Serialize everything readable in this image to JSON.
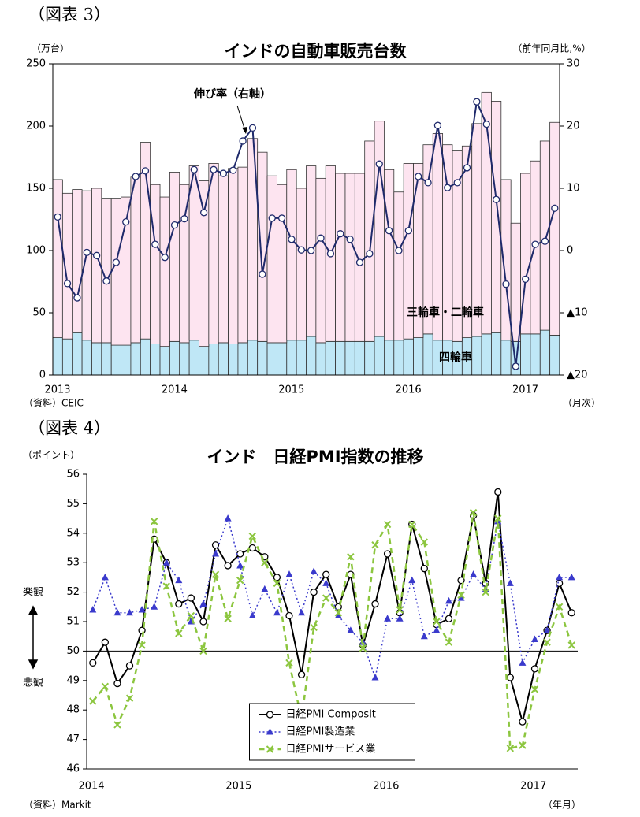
{
  "chart_data": [
    {
      "type": "bar",
      "stacked": true,
      "figure_label": "（図表 3）",
      "title": "インドの自動車販売台数",
      "y_unit": "（万台）",
      "y2_unit": "（前年同月比,%）",
      "source": "（資料）CEIC",
      "x_unit": "（月次）",
      "categories": [
        "2013",
        null,
        null,
        null,
        null,
        null,
        null,
        null,
        null,
        null,
        null,
        null,
        "2014",
        null,
        null,
        null,
        null,
        null,
        null,
        null,
        null,
        null,
        null,
        null,
        "2015",
        null,
        null,
        null,
        null,
        null,
        null,
        null,
        null,
        null,
        null,
        null,
        "2016",
        null,
        null,
        null,
        null,
        null,
        null,
        null,
        null,
        null,
        null,
        null,
        "2017",
        null,
        null,
        null
      ],
      "ylim": [
        0,
        250
      ],
      "yticks": [
        0,
        50,
        100,
        150,
        200,
        250
      ],
      "y2lim": [
        -20,
        30
      ],
      "y2ticks": [
        {
          "value": -20,
          "label": "▲20"
        },
        {
          "value": -10,
          "label": "▲10"
        },
        0,
        10,
        20,
        30
      ],
      "series": [
        {
          "name": "四輪車",
          "type": "bar",
          "color": "#bfe7f6",
          "values": [
            30,
            29,
            34,
            28,
            26,
            26,
            24,
            24,
            26,
            29,
            25,
            23,
            27,
            26,
            28,
            23,
            25,
            26,
            25,
            26,
            28,
            27,
            26,
            26,
            28,
            28,
            31,
            26,
            27,
            27,
            27,
            27,
            27,
            31,
            28,
            28,
            29,
            30,
            33,
            28,
            28,
            27,
            30,
            31,
            33,
            34,
            28,
            27,
            33,
            33,
            36,
            32
          ]
        },
        {
          "name": "三輪車・二輪車",
          "type": "bar",
          "color": "#fde4f0",
          "values": [
            127,
            117,
            115,
            120,
            124,
            116,
            118,
            119,
            133,
            158,
            128,
            120,
            136,
            127,
            140,
            133,
            145,
            134,
            141,
            141,
            162,
            152,
            134,
            127,
            137,
            122,
            137,
            132,
            141,
            135,
            135,
            135,
            161,
            173,
            137,
            119,
            141,
            140,
            152,
            166,
            157,
            153,
            154,
            171,
            194,
            186,
            129,
            95,
            129,
            139,
            152,
            171
          ]
        },
        {
          "name": "伸び率（右軸）",
          "type": "line",
          "axis": "y2",
          "color": "#1f2a6b",
          "marker": "circle",
          "dash": "solid",
          "values": [
            5.4,
            -5.3,
            -7.6,
            -0.3,
            -0.8,
            -4.9,
            -1.9,
            4.6,
            11.9,
            12.8,
            1.0,
            -1.1,
            4.1,
            5.1,
            13.0,
            6.1,
            13.0,
            12.4,
            12.9,
            17.6,
            19.7,
            -3.8,
            5.2,
            5.2,
            1.8,
            0.1,
            0,
            2.0,
            -0.5,
            2.7,
            1.8,
            -1.9,
            -0.5,
            13.9,
            3.2,
            0,
            3.2,
            11.9,
            10.9,
            20.1,
            10.1,
            10.9,
            13.3,
            23.9,
            20.3,
            8.2,
            -5.4,
            -18.6,
            -4.6,
            1.0,
            1.5,
            6.8
          ]
        }
      ]
    },
    {
      "type": "line",
      "figure_label": "（図表 4）",
      "title": "インド　日経PMI指数の推移",
      "y_unit": "（ポイント）",
      "source": "（資料）Markit",
      "x_unit": "（年月）",
      "annotations": [
        "楽観",
        "悲観"
      ],
      "categories": [
        "2014",
        null,
        null,
        null,
        null,
        null,
        null,
        null,
        null,
        null,
        null,
        null,
        "2015",
        null,
        null,
        null,
        null,
        null,
        null,
        null,
        null,
        null,
        null,
        null,
        "2016",
        null,
        null,
        null,
        null,
        null,
        null,
        null,
        null,
        null,
        null,
        null,
        "2017",
        null,
        null,
        null
      ],
      "ylim": [
        46,
        56
      ],
      "yticks": [
        46,
        47,
        48,
        49,
        50,
        51,
        52,
        53,
        54,
        55,
        56
      ],
      "reference_line": 50,
      "legend": "lower center",
      "series": [
        {
          "name": "日経PMI Composit",
          "type": "line",
          "color": "#000000",
          "marker": "circle",
          "dash": "solid",
          "values": [
            49.6,
            50.3,
            48.9,
            49.5,
            50.7,
            53.8,
            53.0,
            51.6,
            51.8,
            51.0,
            53.6,
            52.9,
            53.3,
            53.5,
            53.2,
            52.5,
            51.2,
            49.2,
            52.0,
            52.6,
            51.5,
            52.6,
            50.2,
            51.6,
            53.3,
            51.3,
            54.3,
            52.8,
            50.9,
            51.1,
            52.4,
            54.6,
            52.3,
            55.4,
            49.1,
            47.6,
            49.4,
            50.7,
            52.3,
            51.3
          ]
        },
        {
          "name": "日経PMI製造業",
          "type": "line",
          "color": "#3a3acc",
          "marker": "triangle",
          "dash": "dotted",
          "values": [
            51.4,
            52.5,
            51.3,
            51.3,
            51.4,
            51.5,
            53.0,
            52.4,
            51.0,
            51.6,
            53.3,
            54.5,
            52.9,
            51.2,
            52.1,
            51.3,
            52.6,
            51.3,
            52.7,
            52.3,
            51.2,
            50.7,
            50.3,
            49.1,
            51.1,
            51.1,
            52.4,
            50.5,
            50.7,
            51.7,
            51.8,
            52.6,
            52.1,
            54.4,
            52.3,
            49.6,
            50.4,
            50.7,
            52.5,
            52.5
          ]
        },
        {
          "name": "日経PMIサービス業",
          "type": "line",
          "color": "#8cc63f",
          "marker": "x",
          "dash": "dashed",
          "values": [
            48.3,
            48.8,
            47.5,
            48.4,
            50.2,
            54.4,
            52.2,
            50.6,
            51.2,
            50.0,
            52.6,
            51.1,
            52.4,
            53.9,
            53.0,
            52.3,
            49.6,
            47.7,
            50.8,
            51.8,
            51.3,
            53.2,
            50.1,
            53.6,
            54.3,
            51.4,
            54.3,
            53.7,
            51.0,
            50.3,
            51.9,
            54.7,
            52.0,
            54.5,
            46.7,
            46.8,
            48.7,
            50.3,
            51.5,
            50.2
          ]
        }
      ]
    }
  ]
}
